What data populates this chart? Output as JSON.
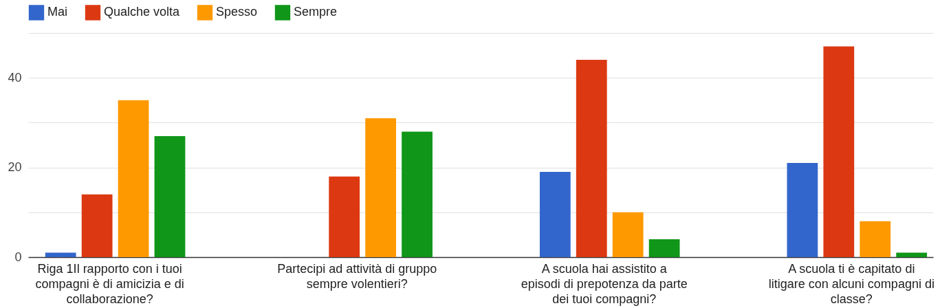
{
  "chart_data": {
    "type": "bar",
    "categories": [
      "Riga 1Il rapporto con i tuoi compagni è di amicizia e di collaborazione?",
      "Partecipi ad attività di gruppo sempre volentieri?",
      "A scuola hai assistito a episodi di prepotenza da parte dei tuoi compagni?",
      "A scuola ti è capitato di litigare con alcuni compagni di classe?"
    ],
    "series": [
      {
        "name": "Mai",
        "color": "#3366cc",
        "values": [
          1,
          0,
          19,
          21
        ]
      },
      {
        "name": "Qualche volta",
        "color": "#dc3912",
        "values": [
          14,
          18,
          44,
          47
        ]
      },
      {
        "name": "Spesso",
        "color": "#ff9900",
        "values": [
          35,
          31,
          10,
          8
        ]
      },
      {
        "name": "Sempre",
        "color": "#109618",
        "values": [
          27,
          28,
          4,
          1
        ]
      }
    ],
    "ylim": [
      0,
      50
    ],
    "yticks": [
      0,
      {
        "value": 10,
        "label": null
      },
      20,
      {
        "value": 30,
        "label": null
      },
      40,
      {
        "value": 50,
        "label": null
      }
    ],
    "grid": true,
    "legend": "top left"
  }
}
